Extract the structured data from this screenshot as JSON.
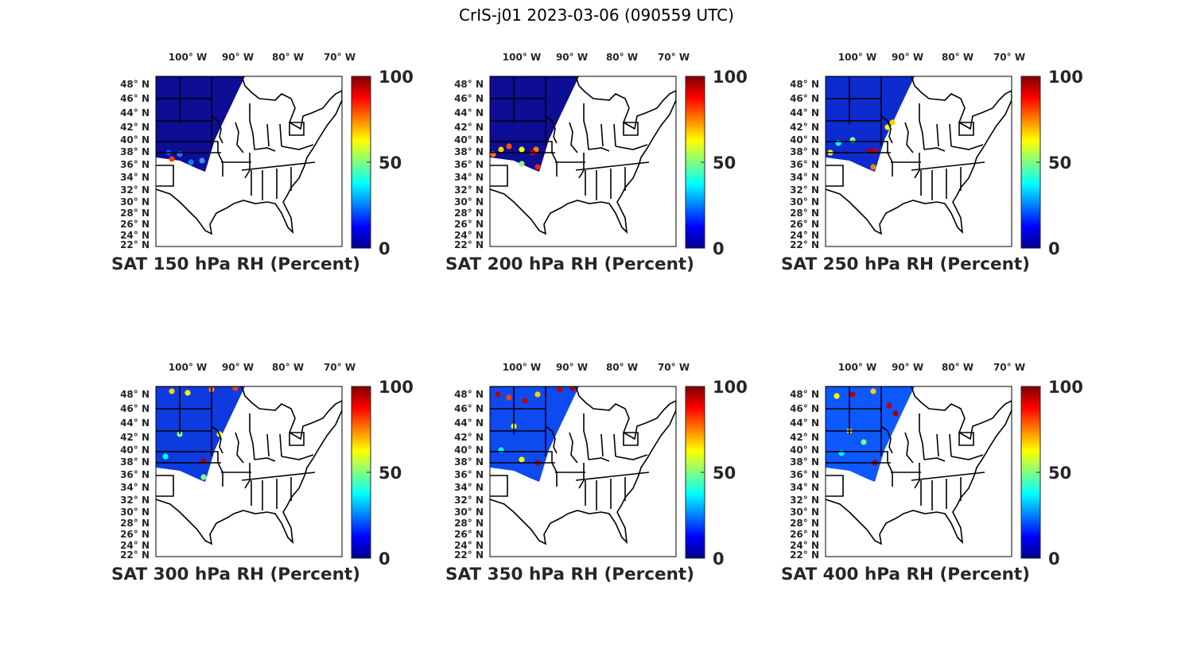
{
  "figure": {
    "title": "CrIS-j01 2023-03-06 (090559 UTC)"
  },
  "map": {
    "lon_ticks": [
      "100",
      "90",
      "80",
      "70"
    ],
    "lon_suffix": "W",
    "lat_ticks": [
      "48",
      "46",
      "44",
      "42",
      "40",
      "38",
      "36",
      "34",
      "32",
      "30",
      "28",
      "26",
      "24",
      "22"
    ],
    "lat_suffix": "N",
    "degree_symbol": "°"
  },
  "colorbar": {
    "colormap": "jet",
    "colors": [
      "#00008f",
      "#0000ff",
      "#0080ff",
      "#00ffff",
      "#80ff80",
      "#ffff00",
      "#ff8000",
      "#ff0000",
      "#800000"
    ],
    "labels": [
      "100",
      "50",
      "0"
    ],
    "range": [
      0,
      100
    ]
  },
  "panels": [
    {
      "label": "SAT 150 hPa RH (Percent)",
      "level": "150"
    },
    {
      "label": "SAT 200 hPa RH (Percent)",
      "level": "200"
    },
    {
      "label": "SAT 250 hPa RH (Percent)",
      "level": "250"
    },
    {
      "label": "SAT 300 hPa RH (Percent)",
      "level": "300"
    },
    {
      "label": "SAT 350 hPa RH (Percent)",
      "level": "350"
    },
    {
      "label": "SAT 400 hPa RH (Percent)",
      "level": "400"
    }
  ],
  "colors": {
    "map_border": "#000000",
    "text": "#262626"
  }
}
